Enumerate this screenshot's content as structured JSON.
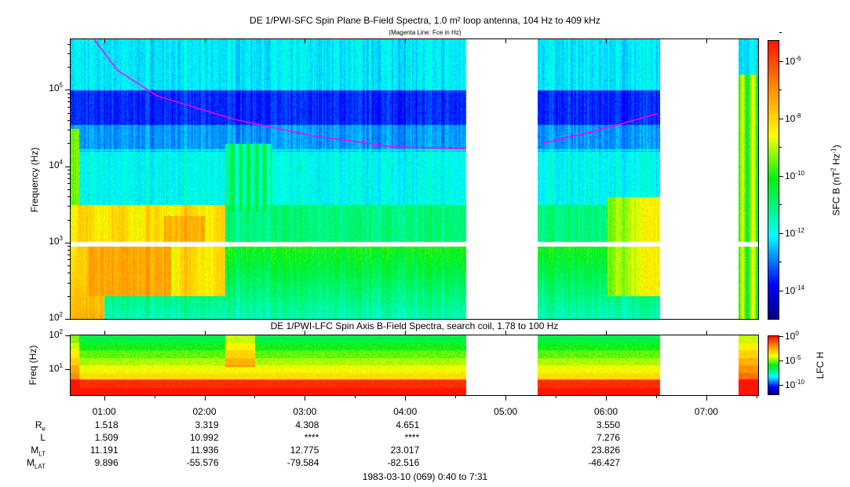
{
  "title": "DE 1/PWI-SFC  Spin Plane B-Field Spectra, 1.0 m² loop antenna, 104 Hz to 409 kHz",
  "subtitle": "(Magenta Line: Fce in Hz)",
  "lower_title": "DE 1/PWI-LFC  Spin Axis B-Field Spectra, search coil, 1.78 to 100 Hz",
  "footer": "1983-03-10 (069) 0:40 to 7:31",
  "colors": {
    "fce": "#ff00ff",
    "gap": "#ffffff"
  },
  "chart_data": [
    {
      "type": "heatmap",
      "name": "SFC spectrogram",
      "ylabel": "Frequency (Hz)",
      "yscale": "log",
      "ylim": [
        100,
        460000
      ],
      "xlim_minutes": [
        40,
        451
      ],
      "yticks": [
        {
          "base": "10",
          "exp": "2",
          "v": 100
        },
        {
          "base": "10",
          "exp": "3",
          "v": 1000
        },
        {
          "base": "10",
          "exp": "4",
          "v": 10000
        },
        {
          "base": "10",
          "exp": "5",
          "v": 100000
        }
      ],
      "colorbar": {
        "label": "SFC B (nT",
        "label_exp1": "2",
        "label_mid": " Hz",
        "label_exp2": "-1",
        "label_end": ")",
        "range_log10": [
          -15,
          -5.3
        ],
        "ticks": [
          {
            "base": "10",
            "exp": "-6",
            "v": -6
          },
          {
            "base": "10",
            "exp": "-8",
            "v": -8
          },
          {
            "base": "10",
            "exp": "-10",
            "v": -10
          },
          {
            "base": "10",
            "exp": "-12",
            "v": -12
          },
          {
            "base": "10",
            "exp": "-14",
            "v": -14
          }
        ]
      },
      "data_gaps_minutes": [
        [
          276,
          319
        ],
        [
          392,
          439
        ]
      ],
      "fce_series": {
        "name": "Fce",
        "segments": [
          [
            [
              54,
              460000
            ],
            [
              68,
              180000
            ],
            [
              92,
              83000
            ],
            [
              138,
              41000
            ],
            [
              185,
              25000
            ],
            [
              232,
              18000
            ],
            [
              276,
              17000
            ]
          ],
          [
            [
              322,
              20000
            ],
            [
              354,
              29000
            ],
            [
              391,
              49000
            ]
          ]
        ]
      }
    },
    {
      "type": "heatmap",
      "name": "LFC spectrogram",
      "ylabel": "Freq (Hz)",
      "yscale": "log",
      "ylim": [
        1.78,
        100
      ],
      "yticks": [
        {
          "base": "10",
          "exp": "2",
          "v": 100
        },
        {
          "base": "10",
          "exp": "1",
          "v": 10
        }
      ],
      "colorbar": {
        "label": "LFC H",
        "range_log10": [
          -12,
          0
        ],
        "ticks": [
          {
            "base": "10",
            "exp": "0",
            "v": 0
          },
          {
            "base": "10",
            "exp": "-5",
            "v": -5
          },
          {
            "base": "10",
            "exp": "-10",
            "v": -10
          }
        ]
      },
      "data_gaps_minutes": [
        [
          276,
          319
        ],
        [
          392,
          439
        ]
      ]
    }
  ],
  "time_axis": {
    "ticks": [
      {
        "label": "01:00",
        "m": 60
      },
      {
        "label": "02:00",
        "m": 120
      },
      {
        "label": "03:00",
        "m": 180
      },
      {
        "label": "04:00",
        "m": 240
      },
      {
        "label": "05:00",
        "m": 300
      },
      {
        "label": "06:00",
        "m": 360
      },
      {
        "label": "07:00",
        "m": 420
      }
    ]
  },
  "ephemeris": {
    "rows": [
      {
        "label": "R",
        "sub": "e",
        "values": [
          "1.518",
          "3.319",
          "4.308",
          "4.651",
          "",
          "3.550",
          ""
        ]
      },
      {
        "label": "L",
        "sub": "",
        "values": [
          "1.509",
          "10.992",
          "****",
          "****",
          "",
          "7.276",
          ""
        ]
      },
      {
        "label": "M",
        "sub": "LT",
        "values": [
          "11.191",
          "11.936",
          "12.775",
          "23.017",
          "",
          "23.826",
          ""
        ]
      },
      {
        "label": "M",
        "sub": "LAT",
        "values": [
          "9.896",
          "-55.576",
          "-79.584",
          "-82.516",
          "",
          "-46.427",
          ""
        ]
      }
    ]
  }
}
